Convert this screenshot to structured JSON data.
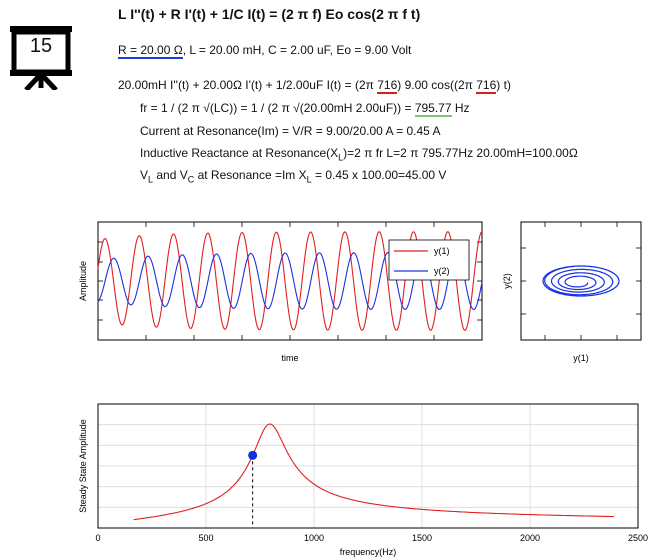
{
  "badge": {
    "number": "15",
    "icon": "presentation-board-icon"
  },
  "equation": "L I''(t) + R I'(t) + 1/C I(t) = (2 π f) Eo cos(2 π f t)",
  "params": {
    "r": "R = 20.00 Ω",
    "rest": ", L = 20.00 mH, C = 2.00 uF, Eo = 9.00 Volt"
  },
  "substituted": {
    "pre": "20.00mH I''(t) + 20.00Ω I'(t) + 1/2.00uF I(t) = (2π ",
    "f1": "716",
    "mid": ") 9.00 cos((2π ",
    "f2": "716",
    "post": ") t)"
  },
  "resonance": {
    "pre": "fr = 1 / (2 π √(LC)) = 1 / (2 π √(20.00mH 2.00uF)) = ",
    "value": "795.77",
    "unit": " Hz"
  },
  "current": "Current at Resonance(Im) = V/R = 9.00/20.00 A = 0.45 A",
  "inductive": {
    "a": "Inductive Reactance at Resonance(X",
    "sub": "L",
    "b": ")=2 π fr L=2 π 795.77Hz 20.00mH=100.00Ω"
  },
  "voltage": {
    "a": "V",
    "sub1": "L",
    "b": " and V",
    "sub2": "C",
    "c": " at Resonance =Im X",
    "sub3": "L",
    "d": " = 0.45 x 100.00=45.00 V"
  },
  "time_plot": {
    "ylabel": "Amplitude",
    "xlabel": "time",
    "legend": [
      "y(1)",
      "y(2)"
    ],
    "colors": {
      "y1": "#e02020",
      "y2": "#2030e0"
    }
  },
  "phase_plot": {
    "xlabel": "y(1)",
    "ylabel": "y(2)"
  },
  "chart_data": {
    "type": "line",
    "xlabel": "frequency(Hz)",
    "ylabel": "Steady State Amplitude",
    "xlim": [
      0,
      2500
    ],
    "xticks": [
      0,
      500,
      1000,
      1500,
      2000,
      2500
    ],
    "resonance_frequency": 795.77,
    "marker_frequency": 716,
    "line_color": "#e02020",
    "marker_color": "#1030e0",
    "grid": true
  }
}
